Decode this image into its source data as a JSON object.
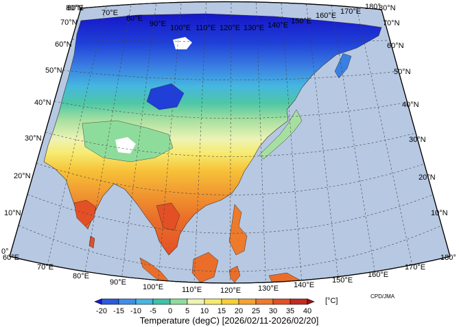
{
  "map": {
    "title": "Temperature (degC) [2026/02/11-2026/02/20]",
    "credit": "CPD/JMA",
    "unit_label": "[°C]",
    "ocean_color": "#b7c8e2",
    "longitude_labels": [
      "60°E",
      "70°E",
      "80°E",
      "90°E",
      "100°E",
      "110°E",
      "120°E",
      "130°E",
      "140°E",
      "150°E",
      "160°E",
      "170°E",
      "180°"
    ],
    "latitude_labels": [
      "0°",
      "10°N",
      "20°N",
      "30°N",
      "40°N",
      "50°N",
      "60°N",
      "70°N",
      "80°N"
    ]
  },
  "colorbar": {
    "tick_labels": [
      "-20",
      "-15",
      "-10",
      "-5",
      "0",
      "5",
      "10",
      "15",
      "20",
      "25",
      "30",
      "35",
      "40"
    ],
    "colors": [
      "#1a1ad2",
      "#2a5ae0",
      "#3f8fe8",
      "#45b7e0",
      "#3cc3a8",
      "#8edc9c",
      "#eef3b4",
      "#f6ea6e",
      "#f7cf35",
      "#f4a233",
      "#ee7a2c",
      "#e35026",
      "#c42a1f",
      "#9e1212"
    ]
  }
}
